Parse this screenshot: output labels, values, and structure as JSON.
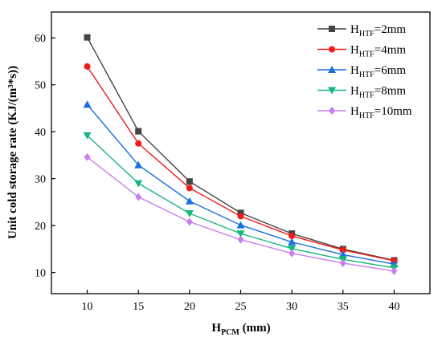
{
  "chart_data": {
    "type": "line",
    "x": [
      10,
      15,
      20,
      25,
      30,
      35,
      40
    ],
    "xlim": [
      6.5,
      43.5
    ],
    "ylim": [
      5.5,
      65.5
    ],
    "x_ticks": [
      10,
      15,
      20,
      25,
      30,
      35,
      40
    ],
    "y_ticks": [
      10,
      20,
      30,
      40,
      50,
      60
    ],
    "xlabel": {
      "main": "H",
      "sub": "PCM",
      "rest": " (mm)"
    },
    "ylabel": "Unit cold storage rate (KJ/(m³*s))",
    "grid": false,
    "legend_position": "top-right",
    "series": [
      {
        "name": {
          "main": "H",
          "sub": "HTF",
          "rest": "=2mm"
        },
        "color": "#444444",
        "marker": "square",
        "values": [
          60.1,
          40.1,
          29.4,
          22.7,
          18.3,
          15.0,
          12.6
        ]
      },
      {
        "name": {
          "main": "H",
          "sub": "HTF",
          "rest": "=4mm"
        },
        "color": "#ee1c1c",
        "marker": "circle",
        "values": [
          53.9,
          37.5,
          28.0,
          22.0,
          17.8,
          14.8,
          12.5
        ]
      },
      {
        "name": {
          "main": "H",
          "sub": "HTF",
          "rest": "=6mm"
        },
        "color": "#1a6fe0",
        "marker": "triangle-up",
        "values": [
          45.8,
          32.9,
          25.2,
          20.1,
          16.5,
          13.8,
          11.8
        ]
      },
      {
        "name": {
          "main": "H",
          "sub": "HTF",
          "rest": "=8mm"
        },
        "color": "#14b87a",
        "marker": "triangle-down",
        "values": [
          39.2,
          29.0,
          22.6,
          18.3,
          15.1,
          12.8,
          11.0
        ]
      },
      {
        "name": {
          "main": "H",
          "sub": "HTF",
          "rest": "=10mm"
        },
        "color": "#c77ef0",
        "marker": "diamond",
        "values": [
          34.6,
          26.1,
          20.8,
          17.0,
          14.1,
          12.0,
          10.3
        ]
      }
    ]
  }
}
